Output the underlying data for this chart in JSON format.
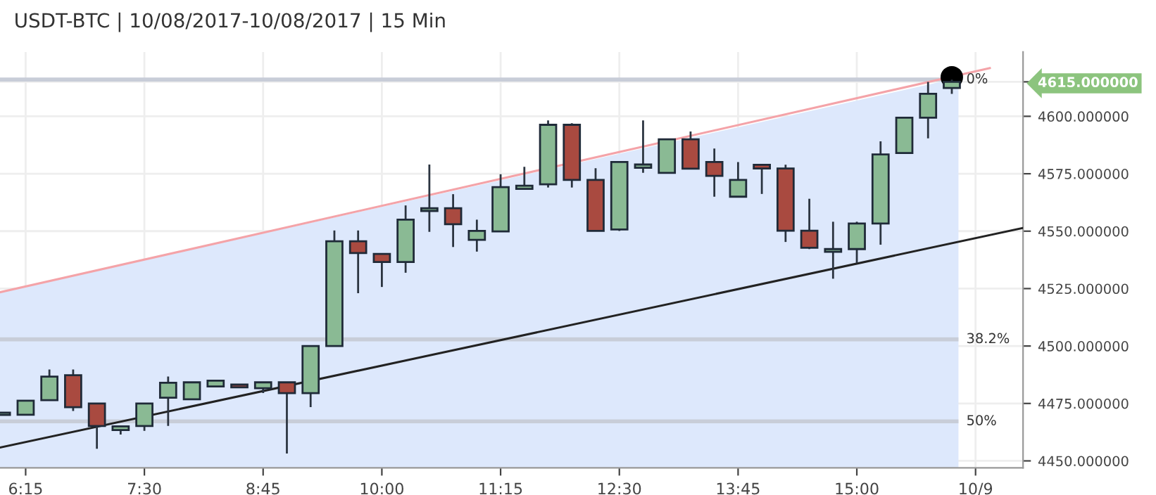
{
  "chart_data": {
    "type": "candlestick",
    "title": "USDT-BTC | 10/08/2017-10/08/2017 | 15 Min",
    "x": [
      6.0,
      6.25,
      6.5,
      6.75,
      7.0,
      7.25,
      7.5,
      7.75,
      8.0,
      8.25,
      8.5,
      8.75,
      9.0,
      9.25,
      9.5,
      9.75,
      10.0,
      10.25,
      10.5,
      10.75,
      11.0,
      11.25,
      11.5,
      11.75,
      12.0,
      12.25,
      12.5,
      12.75,
      13.0,
      13.25,
      13.5,
      13.75,
      14.0,
      14.25,
      14.5,
      14.75,
      15.0,
      15.25,
      15.5,
      15.75,
      16.0
    ],
    "ohlc": [
      [
        4470,
        4471,
        4470,
        4471
      ],
      [
        4470.1,
        4476.2,
        4470.1,
        4476.2
      ],
      [
        4476.4,
        4489.8,
        4476.4,
        4486.7
      ],
      [
        4487.3,
        4489.8,
        4471.7,
        4473.4
      ],
      [
        4475,
        4475,
        4455.3,
        4465.2
      ],
      [
        4463.4,
        4465,
        4461.5,
        4465
      ],
      [
        4465.2,
        4475,
        4463.1,
        4475
      ],
      [
        4477.5,
        4486.7,
        4465.2,
        4484
      ],
      [
        4476.8,
        4484.2,
        4476.8,
        4484.2
      ],
      [
        4482.4,
        4484.9,
        4482.4,
        4484.9
      ],
      [
        4483.2,
        4483.2,
        4482,
        4482
      ],
      [
        4481.6,
        4484.2,
        4479.5,
        4484.2
      ],
      [
        4484.2,
        4484.2,
        4453.2,
        4479.5
      ],
      [
        4479.5,
        4500,
        4473.4,
        4500
      ],
      [
        4500,
        4550.3,
        4500,
        4545.6
      ],
      [
        4545.6,
        4550.3,
        4523,
        4540.5
      ],
      [
        4540.1,
        4540.1,
        4525.7,
        4536.6
      ],
      [
        4536.6,
        4561.2,
        4531.9,
        4555
      ],
      [
        4558.8,
        4579,
        4549.7,
        4560
      ],
      [
        4560,
        4566.1,
        4543.1,
        4553
      ],
      [
        4546.2,
        4555,
        4541.1,
        4550.1
      ],
      [
        4549.9,
        4574.8,
        4549.9,
        4569.2
      ],
      [
        4568.4,
        4578,
        4568.4,
        4569.8
      ],
      [
        4570.4,
        4598.2,
        4569,
        4596.3
      ],
      [
        4596.3,
        4597,
        4569,
        4572.3
      ],
      [
        4572.3,
        4577.4,
        4550.1,
        4550.1
      ],
      [
        4550.7,
        4580.1,
        4550.1,
        4580.1
      ],
      [
        4577.6,
        4598.2,
        4575.4,
        4579
      ],
      [
        4575.4,
        4590,
        4575.4,
        4590
      ],
      [
        4590,
        4593.4,
        4577.2,
        4577.2
      ],
      [
        4580.1,
        4586,
        4565,
        4574.1
      ],
      [
        4565,
        4580.1,
        4565,
        4572.3
      ],
      [
        4578.9,
        4578.9,
        4566.2,
        4577.3
      ],
      [
        4577.3,
        4578.9,
        4545.3,
        4550.2
      ],
      [
        4550.2,
        4564.1,
        4542.2,
        4542.8
      ],
      [
        4541,
        4554.1,
        4529.3,
        4542.2
      ],
      [
        4542.2,
        4554.1,
        4536.1,
        4553.3
      ],
      [
        4553.3,
        4589.1,
        4544.1,
        4583.4
      ],
      [
        4584,
        4599.4,
        4584,
        4599.4
      ],
      [
        4599.4,
        4615,
        4590.4,
        4609.8
      ],
      [
        4612.3,
        4616,
        4609.8,
        4615
      ]
    ],
    "colors": [
      "#8aba94",
      "#8aba94",
      "#8aba94",
      "#a94a40",
      "#a94a40",
      "#8aba94",
      "#8aba94",
      "#8aba94",
      "#8aba94",
      "#8aba94",
      "#a94a40",
      "#8aba94",
      "#a94a40",
      "#8aba94",
      "#8aba94",
      "#a94a40",
      "#a94a40",
      "#8aba94",
      "#8aba94",
      "#a94a40",
      "#8aba94",
      "#8aba94",
      "#8aba94",
      "#8aba94",
      "#a94a40",
      "#a94a40",
      "#8aba94",
      "#8aba94",
      "#8aba94",
      "#a94a40",
      "#a94a40",
      "#8aba94",
      "#a94a40",
      "#a94a40",
      "#a94a40",
      "#8aba94",
      "#8aba94",
      "#8aba94",
      "#8aba94",
      "#8aba94",
      "#8aba94"
    ],
    "series": [
      {
        "type": "area",
        "color": "#dde8fc",
        "x": [
          5.98,
          16.07
        ],
        "values": [
          4523.4,
          4616.7
        ]
      },
      {
        "type": "line",
        "color": "#f4a3a8",
        "x": [
          5.98,
          16.4
        ],
        "values": [
          4523.4,
          4621
        ]
      },
      {
        "type": "line",
        "color": "#222222",
        "x": [
          5.98,
          16.75
        ],
        "values": [
          4455.8,
          4551.4
        ]
      },
      {
        "type": "scatter",
        "color": "#000000",
        "marker": "circle",
        "x": [
          16.0
        ],
        "values": [
          4617
        ]
      }
    ],
    "ref_lines": [
      {
        "axis": "y",
        "value": 4616,
        "color": "#c8cdd8"
      },
      {
        "axis": "y",
        "value": 4502.9,
        "color": "#c8cdd8"
      },
      {
        "axis": "y",
        "value": 4467.2,
        "color": "#c8cdd8"
      }
    ],
    "annotations": [
      "0%",
      "38.2%",
      "50%"
    ],
    "xlim": [
      5.98,
      16.75
    ],
    "xticks": [
      {
        "value": 6.25,
        "label": "6:15"
      },
      {
        "value": 7.5,
        "label": "7:30"
      },
      {
        "value": 8.75,
        "label": "8:45"
      },
      {
        "value": 10.0,
        "label": "10:00"
      },
      {
        "value": 11.25,
        "label": "11:15"
      },
      {
        "value": 12.5,
        "label": "12:30"
      },
      {
        "value": 13.75,
        "label": "13:45"
      },
      {
        "value": 15.0,
        "label": "15:00"
      },
      {
        "value": 16.25,
        "label": "10/9"
      }
    ],
    "ylim": [
      4447,
      4628
    ],
    "yticks": [
      {
        "value": 4450,
        "label": "4450.000000"
      },
      {
        "value": 4475,
        "label": "4475.000000"
      },
      {
        "value": 4500,
        "label": "4500.000000"
      },
      {
        "value": 4525,
        "label": "4525.000000"
      },
      {
        "value": 4550,
        "label": "4550.000000"
      },
      {
        "value": 4575,
        "label": "4575.000000"
      },
      {
        "value": 4600,
        "label": "4600.000000"
      },
      {
        "value": 4615,
        "label": "4615.000000"
      }
    ],
    "grid": true
  }
}
